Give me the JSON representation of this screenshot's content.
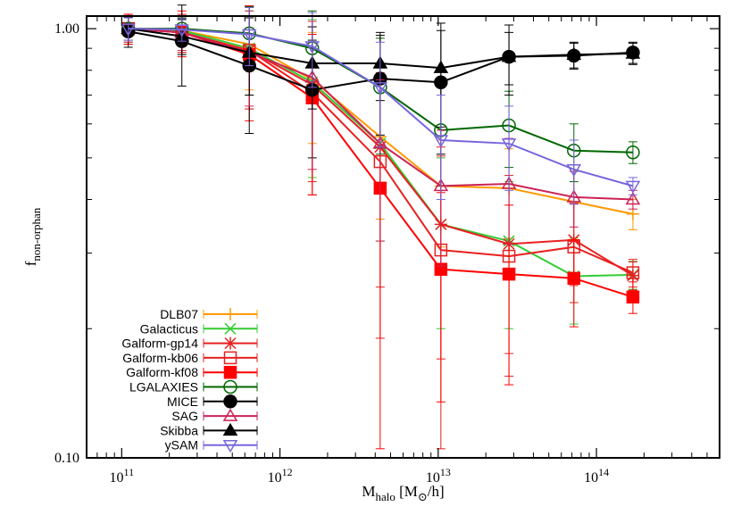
{
  "chart_data": {
    "type": "line",
    "xscale": "log",
    "yscale": "log",
    "xlim": [
      60000000000,
      600000000000000
    ],
    "ylim": [
      0.1,
      1.07
    ],
    "xlabel_main": "M",
    "xlabel_sub": "halo",
    "xlabel_unit_open": " [M",
    "xlabel_sun": "⊙",
    "xlabel_unit_close": "/h]",
    "ylabel_main": "f",
    "ylabel_sub": "non-orphan",
    "x_ticks": [
      {
        "value": 100000000000,
        "base": "10",
        "exp": "11"
      },
      {
        "value": 1000000000000,
        "base": "10",
        "exp": "12"
      },
      {
        "value": 10000000000000,
        "base": "10",
        "exp": "13"
      },
      {
        "value": 100000000000000,
        "base": "10",
        "exp": "14"
      }
    ],
    "y_ticks": [
      {
        "value": 0.1,
        "label": "0.10"
      },
      {
        "value": 1.0,
        "label": "1.00"
      }
    ],
    "x": [
      110000000000,
      240000000000,
      640000000000,
      1600000000000,
      4300000000000,
      10400000000000,
      28000000000000,
      72000000000000,
      170000000000000
    ],
    "legend_position": "bottom-left",
    "grid": false,
    "series": [
      {
        "name": "DLB07",
        "color": "#ff9900",
        "marker": "plus",
        "filled": false,
        "values": [
          1.0,
          0.99,
          0.92,
          0.76,
          0.56,
          0.43,
          0.425,
          0.395,
          0.37
        ],
        "err": [
          0.07,
          0.08,
          0.2,
          0.22,
          0.2,
          0.12,
          0.1,
          0.07,
          0.03
        ]
      },
      {
        "name": "Galacticus",
        "color": "#33cc33",
        "marker": "x",
        "filled": false,
        "values": [
          1.0,
          0.99,
          0.9,
          0.75,
          0.54,
          0.35,
          0.32,
          0.265,
          0.267
        ],
        "err": [
          0.07,
          0.08,
          0.2,
          0.3,
          0.22,
          0.15,
          0.12,
          0.06,
          0.02
        ]
      },
      {
        "name": "Galform-gp14",
        "color": "#e82020",
        "marker": "star",
        "filled": false,
        "values": [
          1.0,
          0.98,
          0.89,
          0.74,
          0.53,
          0.35,
          0.315,
          0.322,
          0.266
        ],
        "err": [
          0.08,
          0.1,
          0.24,
          0.3,
          0.28,
          0.18,
          0.14,
          0.07,
          0.02
        ]
      },
      {
        "name": "Galform-kb06",
        "color": "#e82020",
        "marker": "square",
        "filled": false,
        "values": [
          1.0,
          0.98,
          0.89,
          0.71,
          0.49,
          0.305,
          0.295,
          0.31,
          0.27
        ],
        "err": [
          0.08,
          0.1,
          0.24,
          0.3,
          0.3,
          0.2,
          0.14,
          0.08,
          0.02
        ]
      },
      {
        "name": "Galform-kf08",
        "color": "#ff0000",
        "marker": "square",
        "filled": true,
        "values": [
          1.0,
          0.98,
          0.87,
          0.69,
          0.425,
          0.275,
          0.268,
          0.262,
          0.237
        ],
        "err": [
          0.08,
          0.12,
          0.26,
          0.28,
          0.32,
          0.14,
          0.12,
          0.06,
          0.02
        ]
      },
      {
        "name": "LGALAXIES",
        "color": "#006600",
        "marker": "circle",
        "filled": false,
        "values": [
          1.0,
          1.0,
          0.975,
          0.9,
          0.73,
          0.58,
          0.595,
          0.52,
          0.515
        ],
        "err": [
          0.06,
          0.06,
          0.15,
          0.2,
          0.22,
          0.15,
          0.12,
          0.08,
          0.03
        ]
      },
      {
        "name": "MICE",
        "color": "#000000",
        "marker": "circle",
        "filled": true,
        "values": [
          0.985,
          0.935,
          0.82,
          0.72,
          0.765,
          0.75,
          0.86,
          0.865,
          0.88
        ],
        "err": [
          0.08,
          0.2,
          0.25,
          0.22,
          0.2,
          0.24,
          0.16,
          0.06,
          0.05
        ]
      },
      {
        "name": "SAG",
        "color": "#cc2255",
        "marker": "triangle-up",
        "filled": false,
        "values": [
          1.0,
          0.98,
          0.88,
          0.77,
          0.54,
          0.43,
          0.435,
          0.405,
          0.4
        ],
        "err": [
          0.07,
          0.09,
          0.22,
          0.3,
          0.22,
          0.15,
          0.12,
          0.06,
          0.02
        ]
      },
      {
        "name": "Skibba",
        "color": "#000000",
        "marker": "triangle-up",
        "filled": true,
        "values": [
          1.0,
          0.96,
          0.88,
          0.83,
          0.83,
          0.81,
          0.86,
          0.87,
          0.875
        ],
        "err": [
          0.06,
          0.09,
          0.18,
          0.18,
          0.15,
          0.22,
          0.12,
          0.06,
          0.05
        ]
      },
      {
        "name": "ySAM",
        "color": "#7766dd",
        "marker": "triangle-down",
        "filled": false,
        "values": [
          1.0,
          0.995,
          0.97,
          0.91,
          0.73,
          0.55,
          0.54,
          0.47,
          0.43
        ],
        "err": [
          0.06,
          0.06,
          0.15,
          0.18,
          0.2,
          0.15,
          0.12,
          0.08,
          0.02
        ]
      }
    ]
  }
}
